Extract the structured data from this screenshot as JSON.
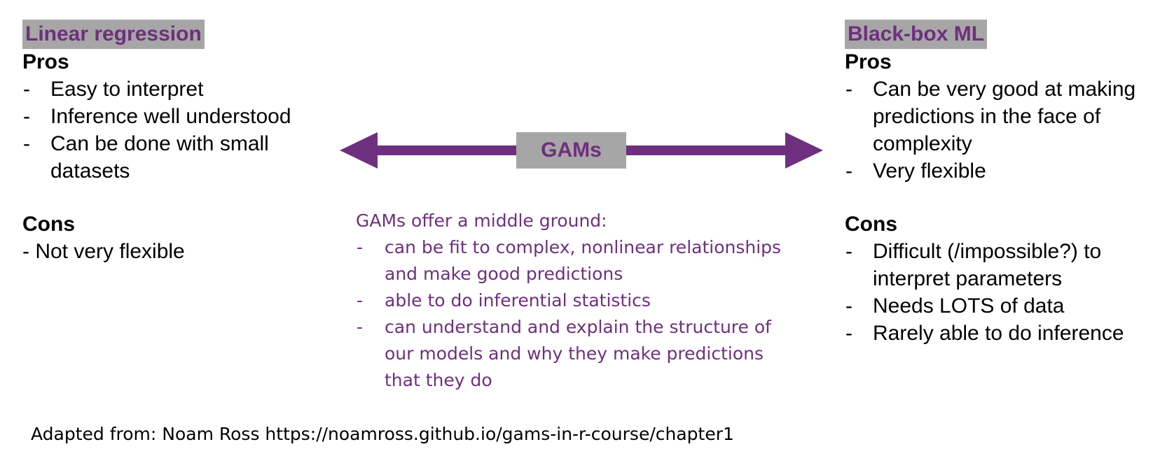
{
  "left": {
    "title": "Linear regression",
    "pros_heading": "Pros",
    "pros": [
      "Easy to interpret",
      "Inference well understood",
      "Can be done with small datasets"
    ],
    "cons_heading": "Cons",
    "cons_text": "- Not very flexible"
  },
  "center": {
    "label": "GAMs",
    "intro": "GAMs offer a middle ground:",
    "points": [
      "can be fit to complex, nonlinear relationships and make good predictions",
      "able to do inferential statistics",
      "can understand and explain the structure of our models and why they make predictions that they do"
    ]
  },
  "right": {
    "title": "Black-box ML",
    "pros_heading": "Pros",
    "pros": [
      "Can be very good at making predictions in the face of complexity",
      "Very flexible"
    ],
    "cons_heading": "Cons",
    "cons": [
      "Difficult (/impossible?) to interpret parameters",
      "Needs LOTS of data",
      "Rarely able to do inference"
    ]
  },
  "credit": "Adapted from: Noam Ross https://noamross.github.io/gams-in-r-course/chapter1",
  "colors": {
    "accent": "#6f2f7f",
    "label_bg": "#a6a6a6"
  }
}
